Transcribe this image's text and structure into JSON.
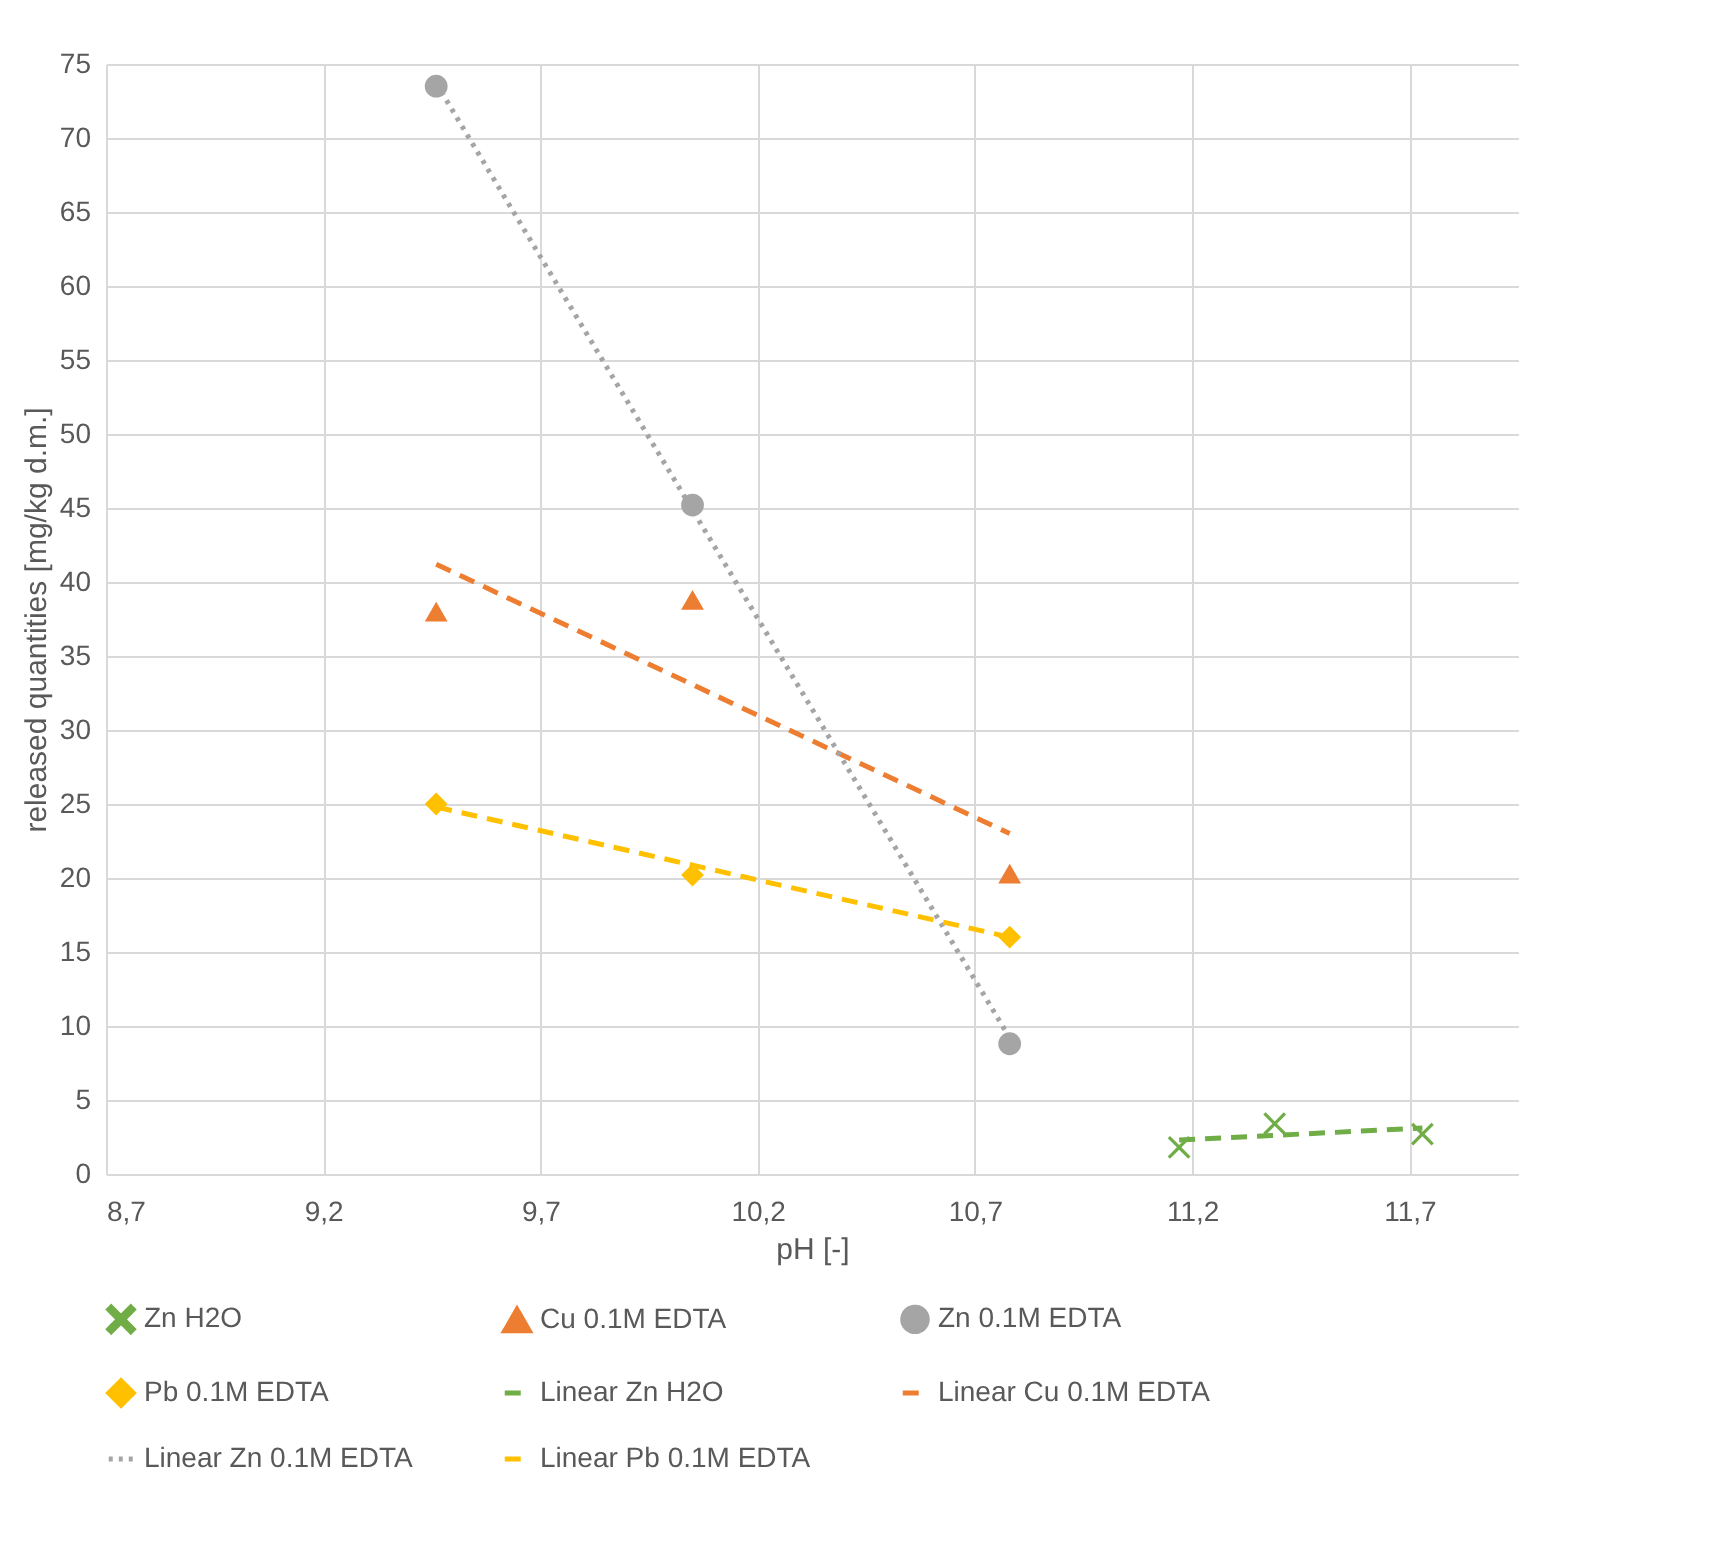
{
  "chart_data": {
    "type": "scatter",
    "xlabel": "pH [-]",
    "ylabel": "released quantities [mg/kg d.m.]",
    "xlim": [
      8.7,
      11.95
    ],
    "ylim": [
      0,
      75
    ],
    "xticks": [
      {
        "value": 8.7,
        "label": "8,7"
      },
      {
        "value": 9.2,
        "label": "9,2"
      },
      {
        "value": 9.7,
        "label": "9,7"
      },
      {
        "value": 10.2,
        "label": "10,2"
      },
      {
        "value": 10.7,
        "label": "10,7"
      },
      {
        "value": 11.2,
        "label": "11,2"
      },
      {
        "value": 11.7,
        "label": "11,7"
      }
    ],
    "yticks": [
      0,
      5,
      10,
      15,
      20,
      25,
      30,
      35,
      40,
      45,
      50,
      55,
      60,
      65,
      70,
      75
    ],
    "grid": true,
    "legend": "bottom",
    "series": [
      {
        "name": "Zn H2O",
        "type": "scatter",
        "marker": "cross",
        "color": "#70ad47",
        "x": [
          11.17,
          11.39,
          11.73
        ],
        "values": [
          1.8,
          3.4,
          2.7
        ]
      },
      {
        "name": "Cu 0.1M EDTA",
        "type": "scatter",
        "marker": "triangle",
        "color": "#ed7d31",
        "x": [
          9.46,
          10.05,
          10.78
        ],
        "values": [
          38,
          38.8,
          20.3
        ]
      },
      {
        "name": "Zn 0.1M EDTA",
        "type": "scatter",
        "marker": "circle",
        "color": "#a5a5a5",
        "x": [
          9.46,
          10.05,
          10.78
        ],
        "values": [
          73.5,
          45.2,
          8.8
        ]
      },
      {
        "name": "Pb 0.1M EDTA",
        "type": "scatter",
        "marker": "diamond",
        "color": "#ffc000",
        "x": [
          9.46,
          10.05,
          10.78
        ],
        "values": [
          25,
          20.2,
          16
        ]
      },
      {
        "name": "Linear Zn H2O",
        "type": "line",
        "line_style": "dashed",
        "color": "#70ad47",
        "x": [
          11.17,
          11.73
        ],
        "values": [
          2.3,
          3.1
        ]
      },
      {
        "name": "Linear Cu 0.1M EDTA",
        "type": "line",
        "line_style": "dashed",
        "color": "#ed7d31",
        "x": [
          9.46,
          10.78
        ],
        "values": [
          41.2,
          23.0
        ]
      },
      {
        "name": "Linear Zn 0.1M EDTA",
        "type": "line",
        "line_style": "dotted",
        "color": "#a5a5a5",
        "x": [
          9.46,
          10.78
        ],
        "values": [
          73.7,
          9.2
        ]
      },
      {
        "name": "Linear Pb 0.1M EDTA",
        "type": "line",
        "line_style": "dashed",
        "color": "#ffc000",
        "x": [
          9.46,
          10.78
        ],
        "values": [
          24.8,
          16.0
        ]
      }
    ]
  }
}
